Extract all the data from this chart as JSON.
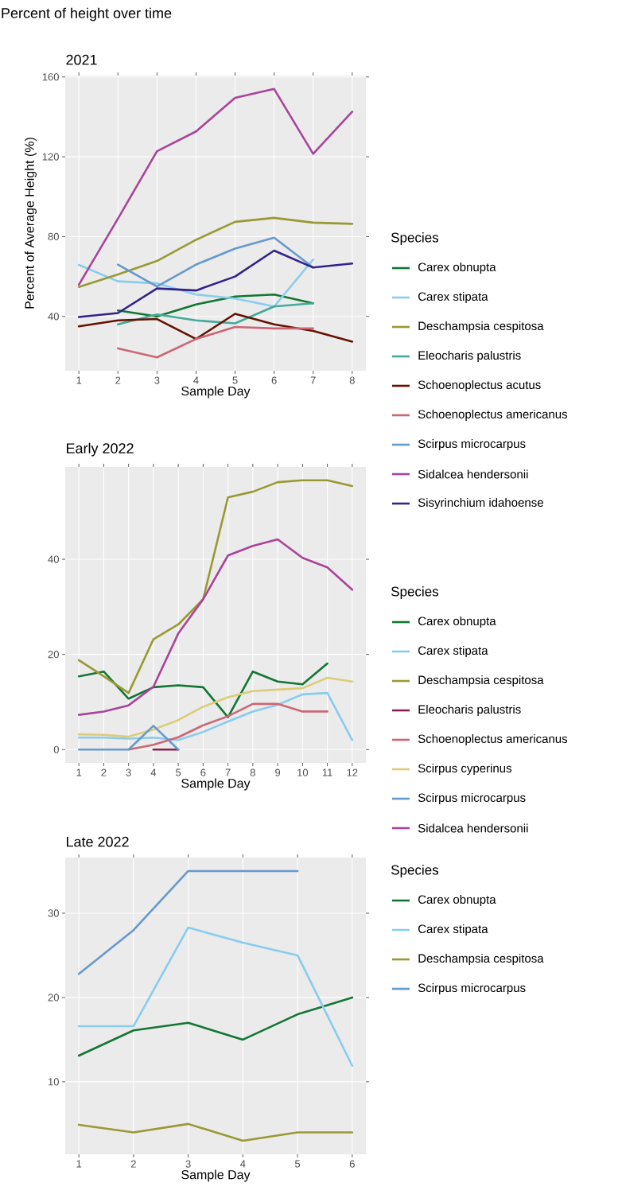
{
  "chart_data": [
    {
      "type": "line",
      "title": "Percent of height over time",
      "subtitle": "2021",
      "xlabel": "Sample Day",
      "ylabel": "Percent of Average Height (%)",
      "legend_title": "Species",
      "legend": "right",
      "grid": true,
      "x": [
        1,
        2,
        3,
        4,
        5,
        6,
        7,
        8
      ],
      "xlim": [
        0.65,
        8.35
      ],
      "xticks": [
        1,
        2,
        3,
        4,
        5,
        6,
        7,
        8
      ],
      "ylim": [
        12.8,
        160.7
      ],
      "yticks": [
        40,
        80,
        120,
        160
      ],
      "series": [
        {
          "name": "Carex obnupta",
          "color": "#117733",
          "values": [
            null,
            43,
            40,
            46,
            50,
            51,
            46.6,
            null
          ]
        },
        {
          "name": "Carex stipata",
          "color": "#88ccee",
          "values": [
            65.8,
            57.6,
            56.6,
            51,
            49,
            45,
            68.5,
            null
          ]
        },
        {
          "name": "Deschampsia cespitosa",
          "color": "#999933",
          "values": [
            54.8,
            61,
            67.8,
            78.4,
            87.4,
            89.4,
            87,
            86.4
          ]
        },
        {
          "name": "Eleocharis palustris",
          "color": "#44aa99",
          "values": [
            null,
            36,
            41,
            38,
            36.5,
            45,
            46.6,
            null
          ]
        },
        {
          "name": "Schoenoplectus acutus",
          "color": "#661100",
          "values": [
            35,
            38,
            38.7,
            28.7,
            41.3,
            36,
            32.7,
            27.4
          ]
        },
        {
          "name": "Schoenoplectus americanus",
          "color": "#cc6677",
          "values": [
            null,
            24,
            19.5,
            28.7,
            34.7,
            34,
            34,
            null
          ]
        },
        {
          "name": "Scirpus microcarpus",
          "color": "#6699cc",
          "values": [
            null,
            66,
            55,
            66,
            74,
            79.5,
            64.5,
            null
          ]
        },
        {
          "name": "Sidalcea hendersonii",
          "color": "#aa4499",
          "values": [
            55.9,
            89,
            122.8,
            132.7,
            149.5,
            154,
            121.5,
            142.6
          ]
        },
        {
          "name": "Sisyrinchium idahoense",
          "color": "#332288",
          "values": [
            39.7,
            41.7,
            54,
            53,
            60,
            73,
            64.5,
            66.5
          ]
        }
      ]
    },
    {
      "type": "line",
      "title": "Early 2022",
      "xlabel": "Sample Day",
      "legend_title": "Species",
      "legend": "right",
      "grid": true,
      "x": [
        1,
        2,
        3,
        4,
        5,
        6,
        7,
        8,
        9,
        10,
        11,
        12
      ],
      "xlim": [
        0.45,
        12.55
      ],
      "xticks": [
        1,
        2,
        3,
        4,
        5,
        6,
        7,
        8,
        9,
        10,
        11,
        12
      ],
      "ylim": [
        -2.8,
        59.4
      ],
      "yticks": [
        0,
        20,
        40
      ],
      "series": [
        {
          "name": "Carex obnupta",
          "color": "#117733",
          "values": [
            15.4,
            16.4,
            10.7,
            13.1,
            13.5,
            13.1,
            6.8,
            16.4,
            14.3,
            13.7,
            18.1,
            null
          ]
        },
        {
          "name": "Carex stipata",
          "color": "#88ccee",
          "values": [
            2.5,
            2.5,
            2.3,
            2.5,
            2,
            3.7,
            5.9,
            8,
            9.4,
            11.6,
            11.9,
            2
          ]
        },
        {
          "name": "Deschampsia cespitosa",
          "color": "#999933",
          "values": [
            18.8,
            15.4,
            11.9,
            23.2,
            26.3,
            31.6,
            53,
            54.2,
            56.2,
            56.6,
            56.6,
            55.4
          ]
        },
        {
          "name": "Eleocharis palustris",
          "color": "#882255",
          "values": [
            null,
            null,
            null,
            0,
            0,
            null,
            null,
            null,
            null,
            null,
            null,
            null
          ]
        },
        {
          "name": "Schoenoplectus americanus",
          "color": "#cc6677",
          "values": [
            null,
            null,
            0,
            1,
            2.6,
            5.1,
            7,
            9.6,
            9.6,
            8,
            8,
            null
          ]
        },
        {
          "name": "Scirpus cyperinus",
          "color": "#ddcc77",
          "values": [
            3.2,
            3.1,
            2.7,
            4.2,
            6.2,
            9,
            11,
            12.3,
            12.6,
            12.9,
            15.1,
            14.3
          ]
        },
        {
          "name": "Scirpus microcarpus",
          "color": "#6699cc",
          "values": [
            0,
            0,
            0,
            5,
            0,
            null,
            null,
            null,
            null,
            null,
            null,
            null
          ]
        },
        {
          "name": "Sidalcea hendersonii",
          "color": "#aa4499",
          "values": [
            7.3,
            8,
            9.3,
            13.2,
            24.4,
            31.6,
            40.8,
            42.8,
            44.2,
            40.3,
            38.3,
            33.6
          ]
        }
      ]
    },
    {
      "type": "line",
      "title": "Late 2022",
      "xlabel": "Sample Day",
      "legend_title": "Species",
      "legend": "right",
      "grid": true,
      "x": [
        1,
        2,
        3,
        4,
        5,
        6
      ],
      "xlim": [
        0.75,
        6.25
      ],
      "xticks": [
        1,
        2,
        3,
        4,
        5,
        6
      ],
      "ylim": [
        1.4,
        36.6
      ],
      "yticks": [
        10,
        20,
        30
      ],
      "series": [
        {
          "name": "Carex obnupta",
          "color": "#117733",
          "values": [
            13.1,
            16.1,
            17,
            15,
            18,
            20
          ]
        },
        {
          "name": "Carex stipata",
          "color": "#88ccee",
          "values": [
            16.6,
            16.6,
            28.3,
            26.5,
            25,
            11.9
          ]
        },
        {
          "name": "Deschampsia cespitosa",
          "color": "#999933",
          "values": [
            4.9,
            4,
            5,
            3,
            4,
            4
          ]
        },
        {
          "name": "Scirpus microcarpus",
          "color": "#6699cc",
          "values": [
            22.8,
            28,
            35,
            35,
            35,
            null
          ]
        }
      ]
    }
  ]
}
